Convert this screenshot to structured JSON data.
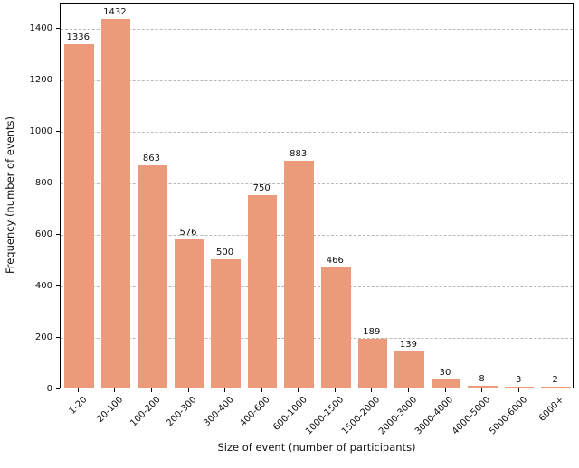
{
  "chart_data": {
    "type": "bar",
    "title": "",
    "xlabel": "Size of event (number of participants)",
    "ylabel": "Frequency (number of events)",
    "categories": [
      "1-20",
      "20-100",
      "100-200",
      "200-300",
      "300-400",
      "400-600",
      "600-1000",
      "1000-1500",
      "1500-2000",
      "2000-3000",
      "3000-4000",
      "4000-5000",
      "5000-6000",
      "6000+"
    ],
    "values": [
      1336,
      1432,
      863,
      576,
      500,
      750,
      883,
      466,
      189,
      139,
      30,
      8,
      3,
      2
    ],
    "yticks": [
      0,
      200,
      400,
      600,
      800,
      1000,
      1200,
      1400
    ],
    "ylim": [
      0,
      1500
    ],
    "legend": "none",
    "grid": "horizontal-dashed",
    "gridline_color": "#b8b8b8",
    "bar_color": "#ec9b7a",
    "frame_color": "#000000",
    "value_labels_shown": true,
    "xtick_rotation_deg": 45
  }
}
